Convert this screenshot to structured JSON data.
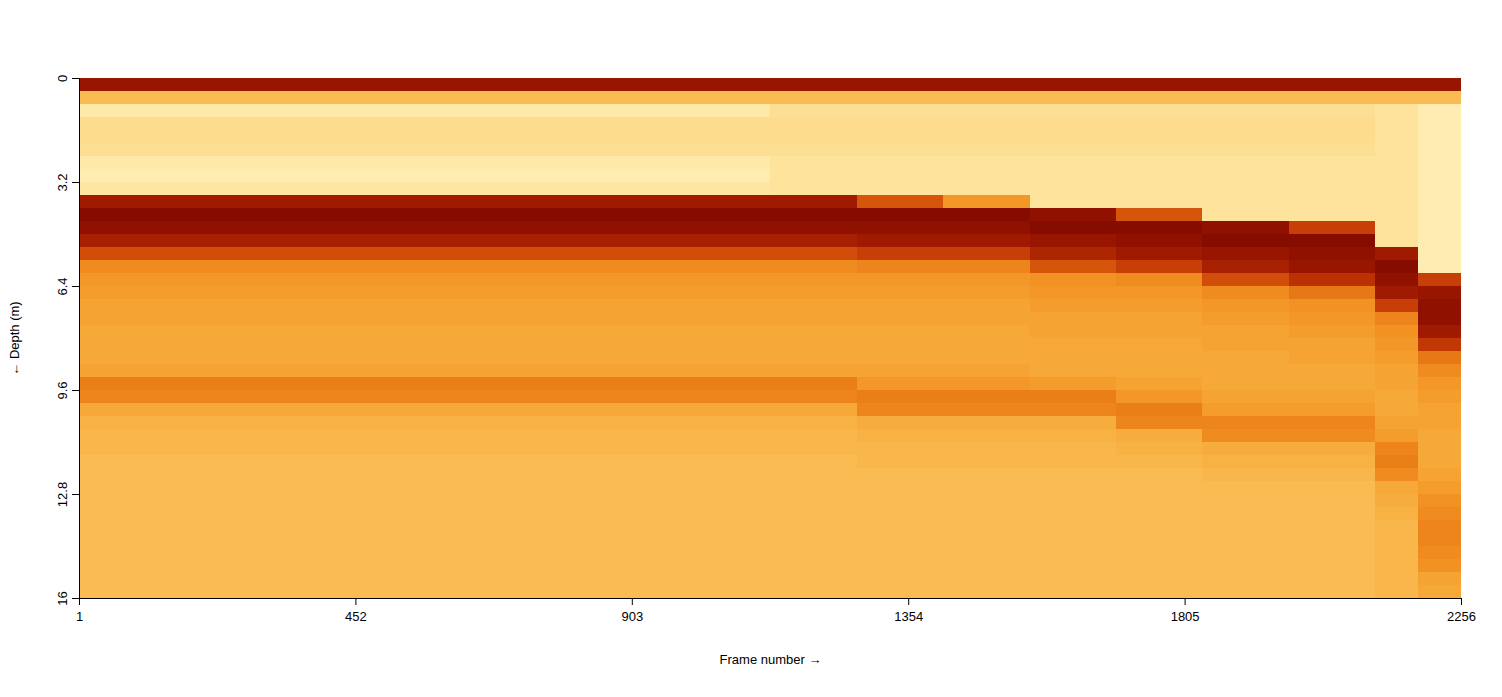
{
  "chart_data": {
    "type": "heatmap",
    "x_label": "Frame number",
    "y_label": "Depth (m)",
    "xlim": [
      1,
      2256
    ],
    "ylim": [
      0,
      16
    ],
    "xticks": [
      1,
      452,
      903,
      1354,
      1805,
      2256
    ],
    "yticks": [
      0,
      3.2,
      6.4,
      9.6,
      12.8,
      16
    ],
    "zlim": [
      -80,
      -30
    ],
    "x_edges": [
      1,
      142,
      283,
      424,
      565,
      706,
      847,
      988,
      1129,
      1270,
      1411,
      1552,
      1693,
      1834,
      1975,
      2116,
      2186,
      2256
    ],
    "y_edges": [
      0,
      0.4,
      0.8,
      1.2,
      1.6,
      2,
      2.4,
      2.8,
      3.2,
      3.6,
      4,
      4.4,
      4.8,
      5.2,
      5.6,
      6,
      6.4,
      6.8,
      7.2,
      7.6,
      8,
      8.4,
      8.8,
      9.2,
      9.6,
      10,
      10.4,
      10.8,
      11.2,
      11.6,
      12,
      12.4,
      12.8,
      13.2,
      13.6,
      14,
      14.4,
      14.8,
      15.2,
      15.6,
      16
    ],
    "cells": [
      [
        -35,
        -62,
        -74,
        -70,
        -70,
        -71,
        -74,
        -75,
        -73,
        -36,
        -33,
        -34,
        -37,
        -44,
        -53,
        -55,
        -56,
        -57,
        -57,
        -58,
        -58,
        -58,
        -57,
        -51,
        -52,
        -58,
        -60,
        -61,
        -61,
        -62,
        -62,
        -62,
        -62,
        -62,
        -62,
        -62,
        -62,
        -62,
        -62,
        -62
      ],
      [
        -35,
        -62,
        -74,
        -70,
        -70,
        -71,
        -74,
        -75,
        -73,
        -36,
        -33,
        -34,
        -37,
        -44,
        -53,
        -55,
        -56,
        -57,
        -57,
        -58,
        -58,
        -58,
        -57,
        -51,
        -52,
        -58,
        -60,
        -61,
        -61,
        -62,
        -62,
        -62,
        -62,
        -62,
        -62,
        -62,
        -62,
        -62,
        -62,
        -62
      ],
      [
        -35,
        -62,
        -74,
        -70,
        -70,
        -71,
        -74,
        -75,
        -73,
        -36,
        -33,
        -34,
        -37,
        -44,
        -53,
        -55,
        -56,
        -57,
        -57,
        -58,
        -58,
        -58,
        -57,
        -51,
        -52,
        -58,
        -60,
        -61,
        -61,
        -62,
        -62,
        -62,
        -62,
        -62,
        -62,
        -62,
        -62,
        -62,
        -62,
        -62
      ],
      [
        -35,
        -62,
        -74,
        -70,
        -70,
        -71,
        -74,
        -75,
        -73,
        -36,
        -33,
        -34,
        -37,
        -44,
        -53,
        -55,
        -56,
        -57,
        -57,
        -58,
        -58,
        -58,
        -57,
        -51,
        -52,
        -58,
        -60,
        -61,
        -61,
        -62,
        -62,
        -62,
        -62,
        -62,
        -62,
        -62,
        -62,
        -62,
        -62,
        -62
      ],
      [
        -35,
        -62,
        -74,
        -70,
        -70,
        -71,
        -74,
        -75,
        -73,
        -36,
        -33,
        -34,
        -37,
        -44,
        -53,
        -55,
        -56,
        -57,
        -57,
        -58,
        -58,
        -58,
        -57,
        -51,
        -52,
        -58,
        -60,
        -61,
        -61,
        -62,
        -62,
        -62,
        -62,
        -62,
        -62,
        -62,
        -62,
        -62,
        -62,
        -62
      ],
      [
        -35,
        -62,
        -74,
        -70,
        -70,
        -71,
        -74,
        -75,
        -73,
        -36,
        -33,
        -34,
        -37,
        -44,
        -53,
        -55,
        -56,
        -57,
        -57,
        -58,
        -58,
        -58,
        -57,
        -51,
        -52,
        -58,
        -60,
        -61,
        -61,
        -62,
        -62,
        -62,
        -62,
        -62,
        -62,
        -62,
        -62,
        -62,
        -62,
        -62
      ],
      [
        -35,
        -62,
        -74,
        -70,
        -70,
        -71,
        -74,
        -75,
        -73,
        -36,
        -33,
        -34,
        -37,
        -44,
        -53,
        -55,
        -56,
        -57,
        -57,
        -58,
        -58,
        -58,
        -57,
        -51,
        -52,
        -58,
        -60,
        -61,
        -61,
        -62,
        -62,
        -62,
        -62,
        -62,
        -62,
        -62,
        -62,
        -62,
        -62,
        -62
      ],
      [
        -35,
        -62,
        -74,
        -70,
        -70,
        -71,
        -74,
        -75,
        -73,
        -36,
        -33,
        -34,
        -37,
        -44,
        -53,
        -55,
        -56,
        -57,
        -57,
        -58,
        -58,
        -58,
        -57,
        -51,
        -52,
        -58,
        -60,
        -61,
        -61,
        -62,
        -62,
        -62,
        -62,
        -62,
        -62,
        -62,
        -62,
        -62,
        -62,
        -62
      ],
      [
        -35,
        -62,
        -71,
        -70,
        -70,
        -71,
        -72,
        -72,
        -72,
        -36,
        -33,
        -34,
        -37,
        -44,
        -53,
        -55,
        -56,
        -57,
        -57,
        -58,
        -58,
        -58,
        -57,
        -51,
        -52,
        -58,
        -60,
        -61,
        -61,
        -62,
        -62,
        -62,
        -62,
        -62,
        -62,
        -62,
        -62,
        -62,
        -62,
        -62
      ],
      [
        -35,
        -62,
        -71,
        -70,
        -70,
        -71,
        -72,
        -72,
        -72,
        -45,
        -33,
        -34,
        -36,
        -42,
        -52,
        -55,
        -56,
        -57,
        -57,
        -58,
        -58,
        -58,
        -57,
        -55,
        -51,
        -52,
        -59,
        -60,
        -61,
        -61,
        -62,
        -62,
        -62,
        -62,
        -62,
        -62,
        -62,
        -62,
        -62,
        -62
      ],
      [
        -35,
        -62,
        -71,
        -70,
        -70,
        -71,
        -72,
        -72,
        -72,
        -55,
        -33,
        -34,
        -36,
        -42,
        -52,
        -55,
        -56,
        -57,
        -57,
        -58,
        -58,
        -58,
        -57,
        -55,
        -51,
        -52,
        -59,
        -60,
        -61,
        -61,
        -62,
        -62,
        -62,
        -62,
        -62,
        -62,
        -62,
        -62,
        -62,
        -62
      ],
      [
        -35,
        -62,
        -71,
        -70,
        -70,
        -71,
        -72,
        -72,
        -72,
        -72,
        -34,
        -33,
        -35,
        -38,
        -45,
        -54,
        -55,
        -56,
        -57,
        -57,
        -58,
        -58,
        -58,
        -56,
        -51,
        -52,
        -59,
        -60,
        -61,
        -61,
        -62,
        -62,
        -62,
        -62,
        -62,
        -62,
        -62,
        -62,
        -62,
        -62
      ],
      [
        -35,
        -62,
        -71,
        -70,
        -70,
        -71,
        -72,
        -72,
        -72,
        -72,
        -45,
        -33,
        -34,
        -36,
        -42,
        -53,
        -55,
        -56,
        -57,
        -57,
        -58,
        -58,
        -58,
        -57,
        -55,
        -51,
        -52,
        -59,
        -60,
        -61,
        -62,
        -62,
        -62,
        -62,
        -62,
        -62,
        -62,
        -62,
        -62,
        -62
      ],
      [
        -35,
        -62,
        -71,
        -70,
        -70,
        -71,
        -72,
        -72,
        -72,
        -72,
        -72,
        -34,
        -33,
        -35,
        -37,
        -44,
        -53,
        -55,
        -56,
        -57,
        -57,
        -58,
        -58,
        -58,
        -57,
        -56,
        -52,
        -53,
        -59,
        -60,
        -61,
        -62,
        -62,
        -62,
        -62,
        -62,
        -62,
        -62,
        -62,
        -62
      ],
      [
        -35,
        -62,
        -71,
        -70,
        -70,
        -71,
        -72,
        -72,
        -72,
        -72,
        -72,
        -42,
        -33,
        -34,
        -35,
        -40,
        -50,
        -54,
        -55,
        -56,
        -57,
        -57,
        -58,
        -58,
        -57,
        -56,
        -52,
        -53,
        -59,
        -60,
        -61,
        -62,
        -62,
        -62,
        -62,
        -62,
        -62,
        -62,
        -62,
        -62
      ],
      [
        -35,
        -62,
        -72,
        -72,
        -72,
        -72,
        -72,
        -72,
        -72,
        -72,
        -72,
        -72,
        -72,
        -36,
        -33,
        -34,
        -36,
        -42,
        -52,
        -54,
        -55,
        -56,
        -57,
        -57,
        -58,
        -58,
        -57,
        -56,
        -52,
        -51,
        -53,
        -58,
        -59,
        -60,
        -61,
        -61,
        -61,
        -61,
        -61,
        -61
      ],
      [
        -35,
        -62,
        -75,
        -75,
        -75,
        -75,
        -75,
        -75,
        -75,
        -75,
        -75,
        -75,
        -75,
        -75,
        -75,
        -42,
        -35,
        -34,
        -34,
        -36,
        -41,
        -50,
        -53,
        -55,
        -56,
        -57,
        -57,
        -58,
        -58,
        -58,
        -57,
        -56,
        -54,
        -53,
        -52,
        -52,
        -53,
        -54,
        -57,
        -58
      ]
    ]
  }
}
